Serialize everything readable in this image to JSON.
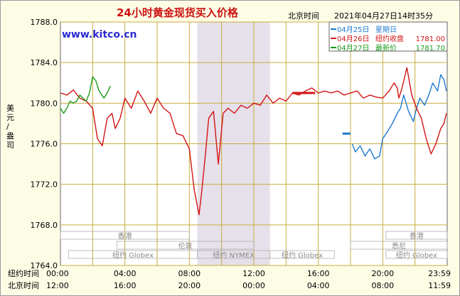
{
  "header": {
    "title": "24小时黄金现货买入价格",
    "timezone": "北京时间",
    "datetime": "2021年04月27日14时35分",
    "watermark": "www.kitco.cn"
  },
  "legend": [
    {
      "label": "04月25日",
      "day": "星期日",
      "price": "",
      "color": "#1c7ad0"
    },
    {
      "label": "04月26日",
      "day": "纽约收盘",
      "price": "1781.00",
      "color": "#d21414"
    },
    {
      "label": "04月27日",
      "day": "最新价",
      "price": "1781.70",
      "color": "#1a9a1a"
    }
  ],
  "axis_labels": {
    "y": "美元/盎司",
    "x_row1": "纽约时间",
    "x_row2": "北京时间"
  },
  "sessions": [
    {
      "name": "香港",
      "row": 1,
      "start": 0,
      "end": 8
    },
    {
      "name": "伦敦",
      "row": 2,
      "start": 3.5,
      "end": 12
    },
    {
      "name": "纽约 Globex",
      "row": 3,
      "start": 0.5,
      "end": 8.5
    },
    {
      "name": "纽约 NYMEX",
      "row": 3,
      "start": 8.5,
      "end": 13
    },
    {
      "name": "纽约 Globex",
      "row": 3,
      "start": 13,
      "end": 17
    },
    {
      "name": "香港",
      "row": 1,
      "start": 20.2,
      "end": 24
    },
    {
      "name": "悉尼",
      "row": 2,
      "start": 18,
      "end": 24
    },
    {
      "name": "纽约 Globex",
      "row": 3,
      "start": 20.2,
      "end": 24
    }
  ],
  "chart_data": {
    "type": "line",
    "ylim": [
      1764,
      1788
    ],
    "yticks": [
      "1764.0",
      "1768.0",
      "1772.0",
      "1776.0",
      "1780.0",
      "1784.0",
      "1788.0"
    ],
    "xlim": [
      0,
      24
    ],
    "xticks_ny": [
      "00:00",
      "04:00",
      "08:00",
      "12:00",
      "16:00",
      "20:00",
      "23:59"
    ],
    "xticks_bj": [
      "12:00",
      "16:00",
      "20:00",
      "00:00",
      "04:00",
      "08:00",
      "11:59"
    ],
    "shaded_range": [
      8.5,
      13
    ],
    "series": [
      {
        "name": "04月25日",
        "color": "#1c7ad0",
        "x": [
          18.1,
          18.3,
          18.6,
          18.9,
          19.2,
          19.5,
          19.8,
          20.0,
          20.3,
          20.6,
          20.9,
          21.1,
          21.3,
          21.6,
          21.9,
          22.1,
          22.3,
          22.6,
          22.9,
          23.1,
          23.4,
          23.6,
          23.8,
          23.95
        ],
        "y": [
          1776.0,
          1775.2,
          1775.8,
          1774.8,
          1775.5,
          1774.5,
          1774.8,
          1776.5,
          1777.2,
          1778.0,
          1779.0,
          1779.5,
          1780.8,
          1779.2,
          1778.2,
          1779.5,
          1780.5,
          1779.8,
          1781.0,
          1782.0,
          1781.2,
          1782.8,
          1782.3,
          1781.2
        ]
      },
      {
        "name": "04月26日",
        "color": "#d21414",
        "x": [
          0.0,
          0.4,
          0.8,
          1.2,
          1.6,
          2.0,
          2.3,
          2.6,
          2.9,
          3.2,
          3.4,
          3.7,
          4.0,
          4.4,
          4.8,
          5.2,
          5.6,
          6.0,
          6.4,
          6.8,
          7.2,
          7.6,
          8.0,
          8.3,
          8.6,
          8.75,
          9.0,
          9.2,
          9.5,
          9.8,
          10.1,
          10.4,
          10.8,
          11.2,
          11.6,
          12.0,
          12.4,
          12.8,
          13.2,
          13.6,
          14.0,
          14.4,
          14.8,
          15.2,
          15.6,
          16.0,
          16.4,
          16.8,
          17.2,
          17.6,
          18.0,
          18.4,
          18.8,
          19.2,
          19.6,
          20.0,
          20.4,
          20.7,
          20.9,
          21.0,
          21.2,
          21.5,
          21.8,
          22.1,
          22.4,
          22.7,
          23.0,
          23.3,
          23.6,
          23.8,
          23.95
        ],
        "y": [
          1781.0,
          1780.8,
          1781.3,
          1780.5,
          1780.2,
          1779.5,
          1776.5,
          1775.8,
          1778.5,
          1779.0,
          1777.5,
          1778.5,
          1780.5,
          1779.5,
          1781.2,
          1780.2,
          1779.0,
          1780.5,
          1779.5,
          1779.0,
          1777.0,
          1776.8,
          1775.5,
          1771.5,
          1769.0,
          1771.0,
          1775.0,
          1778.5,
          1779.2,
          1774.0,
          1779.0,
          1779.5,
          1779.0,
          1779.8,
          1779.5,
          1780.0,
          1779.8,
          1780.8,
          1780.0,
          1780.5,
          1780.2,
          1781.0,
          1780.8,
          1781.2,
          1781.5,
          1781.0,
          1781.2,
          1781.0,
          1781.2,
          1780.8,
          1781.0,
          1781.2,
          1780.5,
          1780.8,
          1780.6,
          1780.5,
          1781.2,
          1782.0,
          1781.5,
          1780.5,
          1781.5,
          1783.5,
          1780.8,
          1779.5,
          1778.5,
          1776.5,
          1775.0,
          1776.0,
          1777.5,
          1778.0,
          1779.0
        ]
      },
      {
        "name": "04月27日",
        "color": "#1a9a1a",
        "x": [
          0.0,
          0.2,
          0.4,
          0.6,
          0.8,
          1.0,
          1.2,
          1.4,
          1.6,
          1.8,
          2.0,
          2.2,
          2.4,
          2.7,
          2.9,
          3.1
        ],
        "y": [
          1779.5,
          1779.0,
          1779.5,
          1780.2,
          1780.0,
          1780.2,
          1780.8,
          1780.5,
          1780.2,
          1781.0,
          1782.6,
          1782.2,
          1781.2,
          1780.5,
          1781.0,
          1781.7
        ]
      }
    ],
    "markers": [
      {
        "name": "04月26日 收盘价",
        "color": "#d21414",
        "x": [
          14.4,
          15.8
        ],
        "y": 1781.0
      },
      {
        "name": "04月25日 开盘价",
        "color": "#1c7ad0",
        "x": [
          17.5,
          18.0
        ],
        "y": 1777.0
      }
    ]
  }
}
